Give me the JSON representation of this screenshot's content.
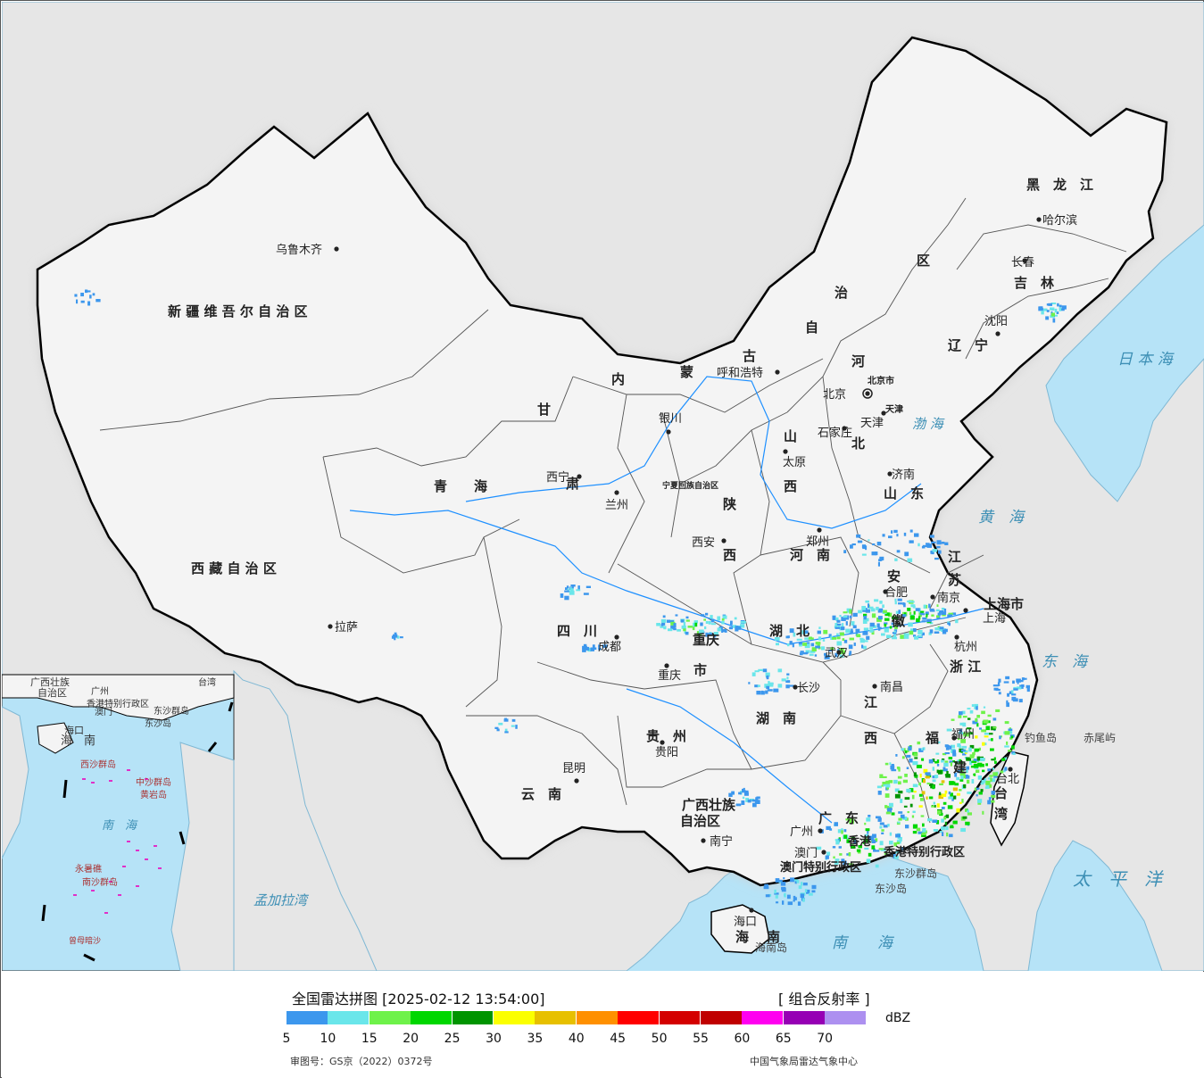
{
  "legend": {
    "title": "全国雷达拼图 [2025-02-12 13:54:00]",
    "product": "[ 组合反射率 ]",
    "unit": "dBZ",
    "approval": "审图号：GS京（2022）0372号",
    "agency": "中国气象局雷达气象中心",
    "scale": [
      {
        "value": "5",
        "color": "#3c97ed"
      },
      {
        "value": "10",
        "color": "#6ae6ea"
      },
      {
        "value": "15",
        "color": "#6ef24a"
      },
      {
        "value": "20",
        "color": "#00d700"
      },
      {
        "value": "25",
        "color": "#009400"
      },
      {
        "value": "30",
        "color": "#fbff00"
      },
      {
        "value": "35",
        "color": "#e7c000"
      },
      {
        "value": "40",
        "color": "#ff9000"
      },
      {
        "value": "45",
        "color": "#ff0000"
      },
      {
        "value": "50",
        "color": "#d40000"
      },
      {
        "value": "55",
        "color": "#c00000"
      },
      {
        "value": "60",
        "color": "#ff00f0"
      },
      {
        "value": "65",
        "color": "#9600b4"
      },
      {
        "value": "70",
        "color": "#ad90f0"
      }
    ]
  },
  "map": {
    "colors": {
      "sea": "#b6e3f7",
      "land": "#f4f4f4",
      "foreign": "#e6e6e6",
      "border": "#000000",
      "province": "#555555"
    },
    "provinces": [
      {
        "name": "新 疆 维 吾 尔 自 治 区"
      },
      {
        "name": "西 藏 自 治 区"
      },
      {
        "name": "青　　海"
      },
      {
        "name": "甘"
      },
      {
        "name": "肃"
      },
      {
        "name": "内"
      },
      {
        "name": "蒙"
      },
      {
        "name": "古"
      },
      {
        "name": "自"
      },
      {
        "name": "治"
      },
      {
        "name": "区"
      },
      {
        "name": "黑　龙　江"
      },
      {
        "name": "吉　林"
      },
      {
        "name": "辽　宁"
      },
      {
        "name": "河"
      },
      {
        "name": "北"
      },
      {
        "name": "山"
      },
      {
        "name": "西"
      },
      {
        "name": "山　东"
      },
      {
        "name": "陕"
      },
      {
        "name": "西"
      },
      {
        "name": "河　南"
      },
      {
        "name": "江"
      },
      {
        "name": "苏"
      },
      {
        "name": "安"
      },
      {
        "name": "徽"
      },
      {
        "name": "湖　北"
      },
      {
        "name": "四　川"
      },
      {
        "name": "重庆"
      },
      {
        "name": "市"
      },
      {
        "name": "浙 江"
      },
      {
        "name": "江"
      },
      {
        "name": "西"
      },
      {
        "name": "湖　南"
      },
      {
        "name": "贵　州"
      },
      {
        "name": "云　南"
      },
      {
        "name": "福"
      },
      {
        "name": "建"
      },
      {
        "name": "广西壮族"
      },
      {
        "name": "自治区"
      },
      {
        "name": "广　东"
      },
      {
        "name": "海"
      },
      {
        "name": "南"
      },
      {
        "name": "上海市"
      },
      {
        "name": "台"
      },
      {
        "name": "湾"
      },
      {
        "name": "宁夏回族自治区"
      },
      {
        "name": "北京市"
      },
      {
        "name": "天津"
      },
      {
        "name": "香港"
      },
      {
        "name": "澳门特别行政区"
      },
      {
        "name": "香港特别行政区"
      }
    ],
    "cities": [
      {
        "name": "乌鲁木齐"
      },
      {
        "name": "拉萨"
      },
      {
        "name": "西宁"
      },
      {
        "name": "兰州"
      },
      {
        "name": "银川"
      },
      {
        "name": "呼和浩特"
      },
      {
        "name": "北京"
      },
      {
        "name": "天津"
      },
      {
        "name": "石家庄"
      },
      {
        "name": "太原"
      },
      {
        "name": "济南"
      },
      {
        "name": "郑州"
      },
      {
        "name": "西安"
      },
      {
        "name": "成都"
      },
      {
        "name": "重庆"
      },
      {
        "name": "武汉"
      },
      {
        "name": "合肥"
      },
      {
        "name": "南京"
      },
      {
        "name": "上海"
      },
      {
        "name": "杭州"
      },
      {
        "name": "南昌"
      },
      {
        "name": "长沙"
      },
      {
        "name": "贵阳"
      },
      {
        "name": "昆明"
      },
      {
        "name": "南宁"
      },
      {
        "name": "广州"
      },
      {
        "name": "澳门"
      },
      {
        "name": "海口"
      },
      {
        "name": "福州"
      },
      {
        "name": "台北"
      },
      {
        "name": "沈阳"
      },
      {
        "name": "长春"
      },
      {
        "name": "哈尔滨"
      }
    ],
    "seas": [
      {
        "name": "渤 海"
      },
      {
        "name": "黄　海"
      },
      {
        "name": "东　海"
      },
      {
        "name": "日 本 海"
      },
      {
        "name": "南　　海"
      },
      {
        "name": "太　平　洋"
      },
      {
        "name": "孟加拉湾"
      }
    ],
    "islands": [
      {
        "name": "钓鱼岛"
      },
      {
        "name": "赤尾屿"
      },
      {
        "name": "海南岛"
      },
      {
        "name": "东沙群岛"
      },
      {
        "name": "东沙岛"
      }
    ],
    "inset": {
      "labels": [
        {
          "name": "广西壮族"
        },
        {
          "name": "自治区"
        },
        {
          "name": "广州"
        },
        {
          "name": "澳门"
        },
        {
          "name": "香港特别行政区"
        },
        {
          "name": "东沙群岛"
        },
        {
          "name": "东沙岛"
        },
        {
          "name": "海口"
        },
        {
          "name": "海"
        },
        {
          "name": "南"
        },
        {
          "name": "西沙群岛"
        },
        {
          "name": "中沙群岛"
        },
        {
          "name": "黄岩岛"
        },
        {
          "name": "南　海"
        },
        {
          "name": "永暑礁"
        },
        {
          "name": "南沙群岛"
        },
        {
          "name": "曾母暗沙"
        },
        {
          "name": "台湾"
        }
      ]
    }
  }
}
